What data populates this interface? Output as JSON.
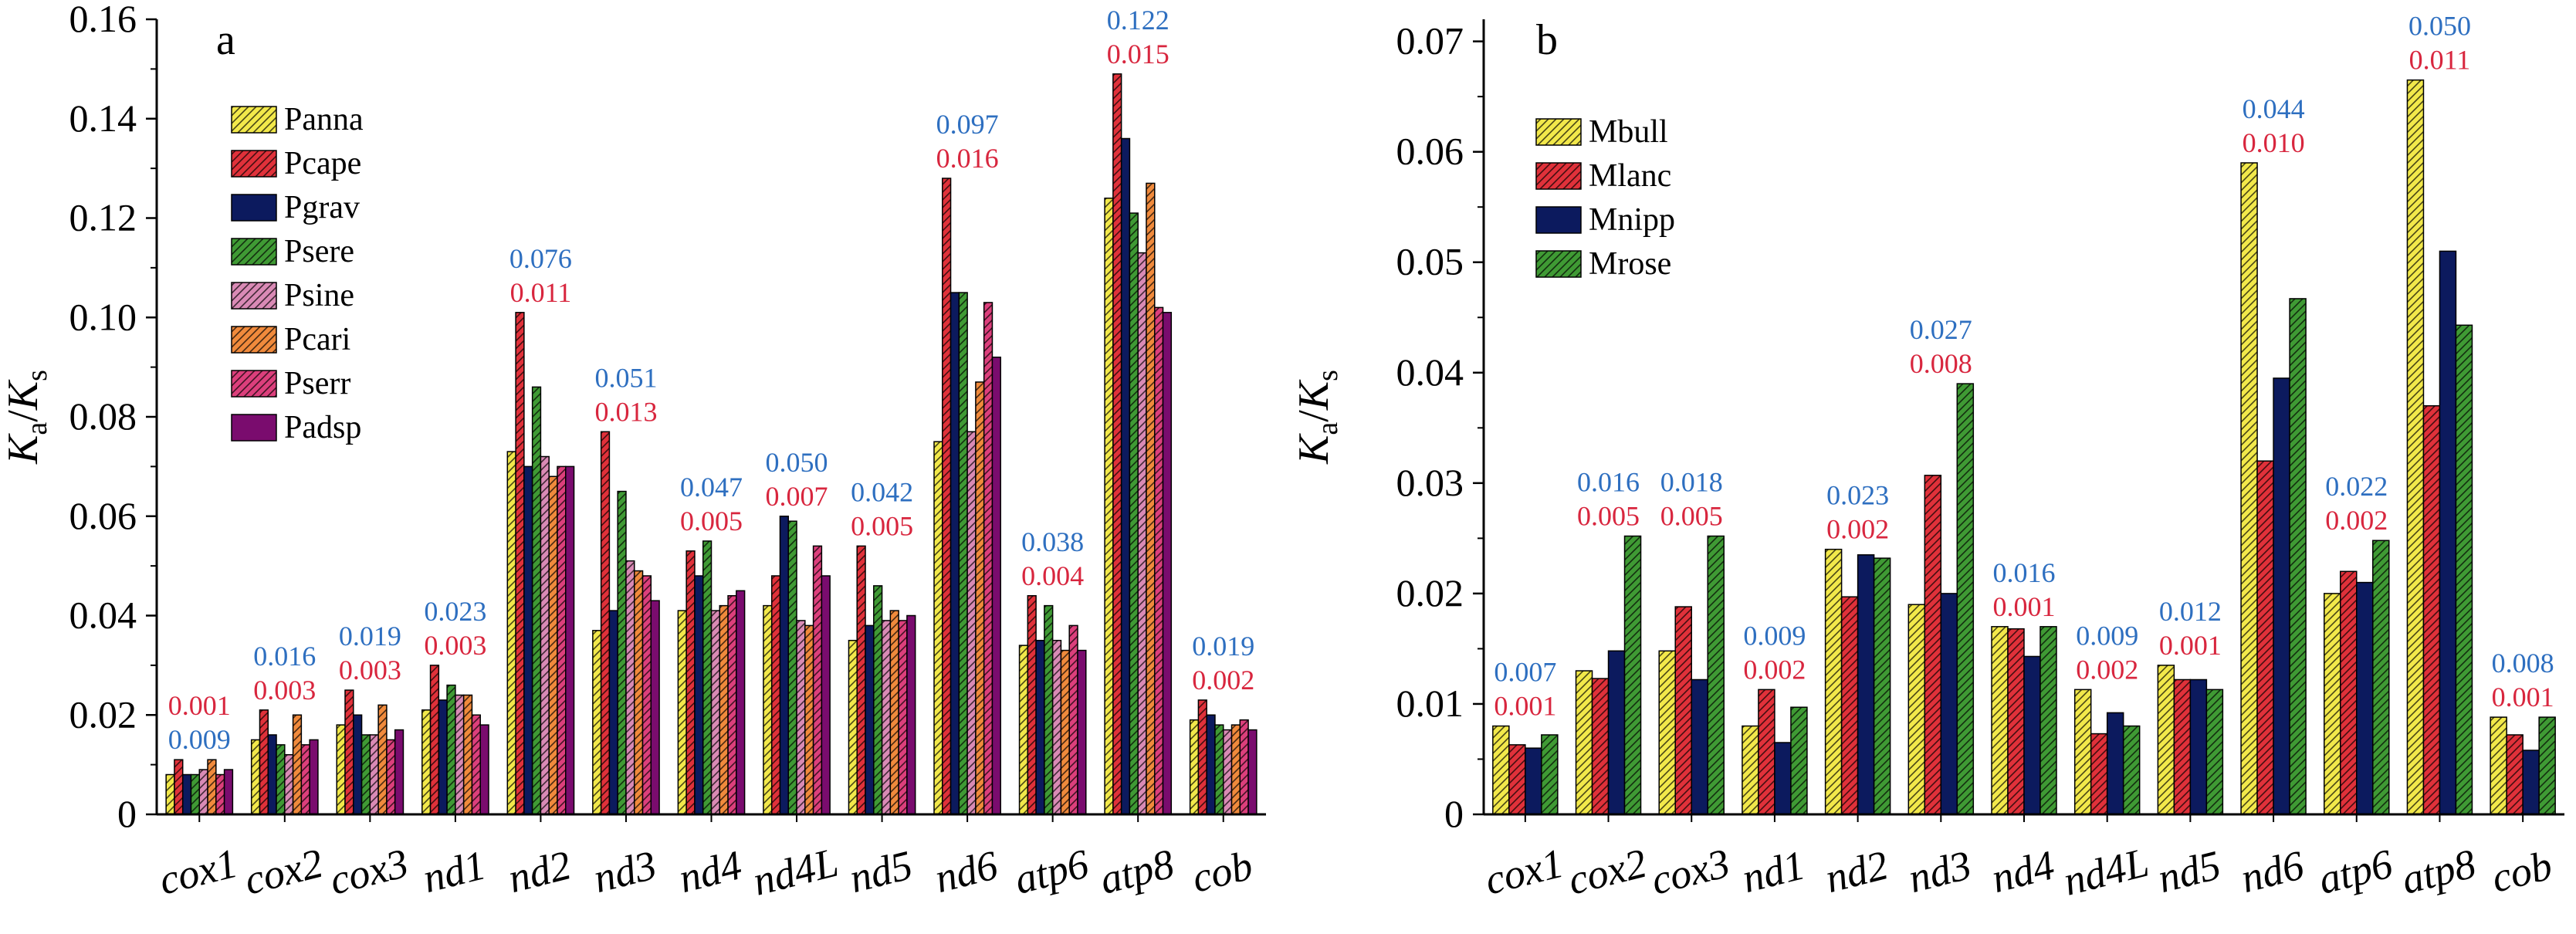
{
  "chart_data": [
    {
      "type": "bar",
      "panel_label": "a",
      "ylabel": "Ka/Ks",
      "ylim": [
        0,
        0.16
      ],
      "yticks": [
        0,
        0.02,
        0.04,
        0.06,
        0.08,
        0.1,
        0.12,
        0.14,
        0.16
      ],
      "ytick_labels": [
        "0",
        "0.02",
        "0.04",
        "0.06",
        "0.08",
        "0.10",
        "0.12",
        "0.14",
        "0.16"
      ],
      "categories": [
        "cox1",
        "cox2",
        "cox3",
        "nd1",
        "nd2",
        "nd3",
        "nd4",
        "nd4L",
        "nd5",
        "nd6",
        "atp6",
        "atp8",
        "cob"
      ],
      "legend_position": "upper-left",
      "series": [
        {
          "name": "Panna",
          "color": "#f2e84a",
          "hatch": true,
          "values": [
            0.008,
            0.015,
            0.018,
            0.021,
            0.073,
            0.037,
            0.041,
            0.042,
            0.035,
            0.075,
            0.034,
            0.124,
            0.019
          ]
        },
        {
          "name": "Pcape",
          "color": "#e0313a",
          "hatch": true,
          "values": [
            0.011,
            0.021,
            0.025,
            0.03,
            0.101,
            0.077,
            0.053,
            0.048,
            0.054,
            0.128,
            0.044,
            0.149,
            0.023
          ]
        },
        {
          "name": "Pgrav",
          "color": "#0c1a5e",
          "hatch": false,
          "values": [
            0.008,
            0.016,
            0.02,
            0.023,
            0.07,
            0.041,
            0.048,
            0.06,
            0.038,
            0.105,
            0.035,
            0.136,
            0.02
          ]
        },
        {
          "name": "Psere",
          "color": "#3f9a34",
          "hatch": true,
          "values": [
            0.008,
            0.014,
            0.016,
            0.026,
            0.086,
            0.065,
            0.055,
            0.059,
            0.046,
            0.105,
            0.042,
            0.121,
            0.018
          ]
        },
        {
          "name": "Psine",
          "color": "#d98ab5",
          "hatch": true,
          "values": [
            0.009,
            0.012,
            0.016,
            0.024,
            0.072,
            0.051,
            0.041,
            0.039,
            0.039,
            0.077,
            0.035,
            0.113,
            0.017
          ]
        },
        {
          "name": "Pcari",
          "color": "#f08a3c",
          "hatch": true,
          "values": [
            0.011,
            0.02,
            0.022,
            0.024,
            0.068,
            0.049,
            0.042,
            0.038,
            0.041,
            0.087,
            0.033,
            0.127,
            0.018
          ]
        },
        {
          "name": "Pserr",
          "color": "#dc3f7c",
          "hatch": true,
          "values": [
            0.008,
            0.014,
            0.015,
            0.02,
            0.07,
            0.048,
            0.044,
            0.054,
            0.039,
            0.103,
            0.038,
            0.102,
            0.019
          ]
        },
        {
          "name": "Padsp",
          "color": "#7a0c6e",
          "hatch": false,
          "values": [
            0.009,
            0.015,
            0.017,
            0.018,
            0.07,
            0.043,
            0.045,
            0.048,
            0.04,
            0.092,
            0.033,
            0.101,
            0.017
          ]
        }
      ],
      "annotations": [
        {
          "category": "cox1",
          "blue": "0.009",
          "red": "0.001",
          "red_on_top": true
        },
        {
          "category": "cox2",
          "blue": "0.016",
          "red": "0.003",
          "red_on_top": false
        },
        {
          "category": "cox3",
          "blue": "0.019",
          "red": "0.003",
          "red_on_top": false
        },
        {
          "category": "nd1",
          "blue": "0.023",
          "red": "0.003",
          "red_on_top": false
        },
        {
          "category": "nd2",
          "blue": "0.076",
          "red": "0.011",
          "red_on_top": false
        },
        {
          "category": "nd3",
          "blue": "0.051",
          "red": "0.013",
          "red_on_top": false
        },
        {
          "category": "nd4",
          "blue": "0.047",
          "red": "0.005",
          "red_on_top": false
        },
        {
          "category": "nd4L",
          "blue": "0.050",
          "red": "0.007",
          "red_on_top": false
        },
        {
          "category": "nd5",
          "blue": "0.042",
          "red": "0.005",
          "red_on_top": false
        },
        {
          "category": "nd6",
          "blue": "0.097",
          "red": "0.016",
          "red_on_top": false
        },
        {
          "category": "atp6",
          "blue": "0.038",
          "red": "0.004",
          "red_on_top": false
        },
        {
          "category": "atp8",
          "blue": "0.122",
          "red": "0.015",
          "red_on_top": false
        },
        {
          "category": "cob",
          "blue": "0.019",
          "red": "0.002",
          "red_on_top": false
        }
      ]
    },
    {
      "type": "bar",
      "panel_label": "b",
      "ylabel": "Ka/Ks",
      "ylim": [
        0,
        0.072
      ],
      "yticks": [
        0,
        0.01,
        0.02,
        0.03,
        0.04,
        0.05,
        0.06,
        0.07
      ],
      "ytick_labels": [
        "0",
        "0.01",
        "0.02",
        "0.03",
        "0.04",
        "0.05",
        "0.06",
        "0.07"
      ],
      "categories": [
        "cox1",
        "cox2",
        "cox3",
        "nd1",
        "nd2",
        "nd3",
        "nd4",
        "nd4L",
        "nd5",
        "nd6",
        "atp6",
        "atp8",
        "cob"
      ],
      "legend_position": "upper-left",
      "series": [
        {
          "name": "Mbull",
          "color": "#f2e84a",
          "hatch": true,
          "values": [
            0.008,
            0.013,
            0.0148,
            0.008,
            0.024,
            0.019,
            0.017,
            0.0113,
            0.0135,
            0.059,
            0.02,
            0.0665,
            0.0088
          ]
        },
        {
          "name": "Mlanc",
          "color": "#e0313a",
          "hatch": true,
          "values": [
            0.0063,
            0.0123,
            0.0188,
            0.0113,
            0.0197,
            0.0307,
            0.0168,
            0.0073,
            0.0122,
            0.032,
            0.022,
            0.037,
            0.0072
          ]
        },
        {
          "name": "Mnipp",
          "color": "#0c1a5e",
          "hatch": false,
          "values": [
            0.006,
            0.0148,
            0.0122,
            0.0065,
            0.0235,
            0.02,
            0.0143,
            0.0092,
            0.0122,
            0.0395,
            0.021,
            0.051,
            0.0058
          ]
        },
        {
          "name": "Mrose",
          "color": "#3f9a34",
          "hatch": true,
          "values": [
            0.0072,
            0.0252,
            0.0252,
            0.0097,
            0.0232,
            0.039,
            0.017,
            0.008,
            0.0113,
            0.0467,
            0.0248,
            0.0443,
            0.0088
          ]
        }
      ],
      "annotations": [
        {
          "category": "cox1",
          "blue": "0.007",
          "red": "0.001",
          "red_on_top": false
        },
        {
          "category": "cox2",
          "blue": "0.016",
          "red": "0.005",
          "red_on_top": false
        },
        {
          "category": "cox3",
          "blue": "0.018",
          "red": "0.005",
          "red_on_top": false
        },
        {
          "category": "nd1",
          "blue": "0.009",
          "red": "0.002",
          "red_on_top": false
        },
        {
          "category": "nd2",
          "blue": "0.023",
          "red": "0.002",
          "red_on_top": false
        },
        {
          "category": "nd3",
          "blue": "0.027",
          "red": "0.008",
          "red_on_top": false
        },
        {
          "category": "nd4",
          "blue": "0.016",
          "red": "0.001",
          "red_on_top": false
        },
        {
          "category": "nd4L",
          "blue": "0.009",
          "red": "0.002",
          "red_on_top": false
        },
        {
          "category": "nd5",
          "blue": "0.012",
          "red": "0.001",
          "red_on_top": false
        },
        {
          "category": "nd6",
          "blue": "0.044",
          "red": "0.010",
          "red_on_top": false
        },
        {
          "category": "atp6",
          "blue": "0.022",
          "red": "0.002",
          "red_on_top": false
        },
        {
          "category": "atp8",
          "blue": "0.050",
          "red": "0.011",
          "red_on_top": false
        },
        {
          "category": "cob",
          "blue": "0.008",
          "red": "0.001",
          "red_on_top": false
        }
      ]
    }
  ],
  "annotation_colors": {
    "blue": "#2e6fc0",
    "red": "#d8263e"
  }
}
